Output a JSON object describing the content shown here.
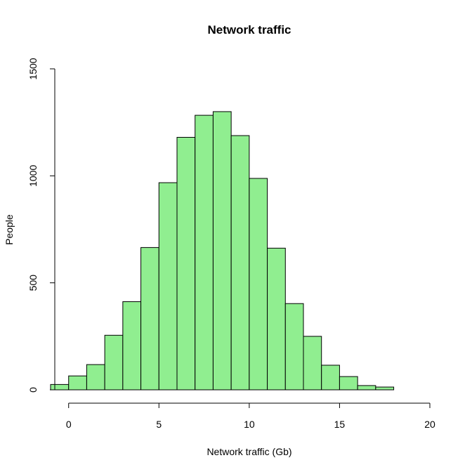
{
  "chart_data": {
    "type": "bar",
    "title": "Network traffic",
    "xlabel": "Network traffic (Gb)",
    "ylabel": "People",
    "xlim": [
      -1,
      20
    ],
    "ylim": [
      0,
      1500
    ],
    "x_ticks": [
      0,
      5,
      10,
      15,
      20
    ],
    "y_ticks": [
      0,
      500,
      1000,
      1500
    ],
    "bar_color": "#90EE90",
    "border_color": "#000000",
    "bin_width": 1,
    "bins": [
      {
        "start": -1,
        "end": 0,
        "value": 25
      },
      {
        "start": 0,
        "end": 1,
        "value": 65
      },
      {
        "start": 1,
        "end": 2,
        "value": 118
      },
      {
        "start": 2,
        "end": 3,
        "value": 255
      },
      {
        "start": 3,
        "end": 4,
        "value": 412
      },
      {
        "start": 4,
        "end": 5,
        "value": 665
      },
      {
        "start": 5,
        "end": 6,
        "value": 968
      },
      {
        "start": 6,
        "end": 7,
        "value": 1180
      },
      {
        "start": 7,
        "end": 8,
        "value": 1283
      },
      {
        "start": 8,
        "end": 9,
        "value": 1300
      },
      {
        "start": 9,
        "end": 10,
        "value": 1188
      },
      {
        "start": 10,
        "end": 11,
        "value": 988
      },
      {
        "start": 11,
        "end": 12,
        "value": 662
      },
      {
        "start": 12,
        "end": 13,
        "value": 403
      },
      {
        "start": 13,
        "end": 14,
        "value": 250
      },
      {
        "start": 14,
        "end": 15,
        "value": 115
      },
      {
        "start": 15,
        "end": 16,
        "value": 62
      },
      {
        "start": 16,
        "end": 17,
        "value": 20
      },
      {
        "start": 17,
        "end": 18,
        "value": 13
      }
    ],
    "grid": false,
    "legend": "none"
  }
}
